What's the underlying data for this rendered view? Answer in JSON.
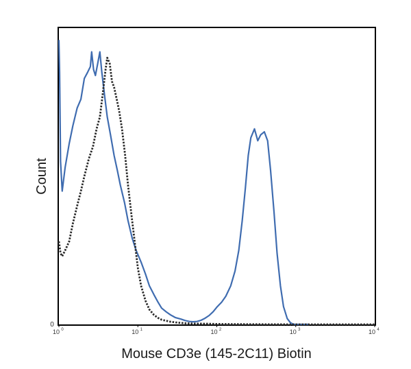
{
  "chart_data": {
    "type": "line",
    "title": "",
    "xlabel": "Mouse CD3e (145-2C11) Biotin",
    "ylabel": "Count",
    "x_scale": "log",
    "xlim": [
      1,
      10000
    ],
    "ylim": [
      0,
      100
    ],
    "x_ticks": [
      {
        "value": 1,
        "base": "10",
        "exp": "0"
      },
      {
        "value": 10,
        "base": "10",
        "exp": "1"
      },
      {
        "value": 100,
        "base": "10",
        "exp": "2"
      },
      {
        "value": 1000,
        "base": "10",
        "exp": "3"
      },
      {
        "value": 10000,
        "base": "10",
        "exp": "4"
      }
    ],
    "y_tick_label": "0",
    "grid": false,
    "legend": "none",
    "series": [
      {
        "id": "stained",
        "color": "#3f6cb0",
        "style": "solid",
        "x": [
          1.0,
          1.02,
          1.05,
          1.1,
          1.2,
          1.35,
          1.5,
          1.7,
          1.9,
          2.1,
          2.3,
          2.5,
          2.6,
          2.75,
          2.9,
          3.1,
          3.3,
          3.5,
          3.8,
          4.1,
          4.5,
          5.0,
          5.5,
          6.0,
          6.8,
          7.5,
          8.5,
          9.5,
          11,
          12.5,
          14,
          16,
          18,
          20,
          23,
          26,
          30,
          35,
          40,
          45,
          50,
          56,
          63,
          70,
          80,
          90,
          100,
          115,
          130,
          150,
          170,
          190,
          210,
          230,
          250,
          270,
          300,
          330,
          360,
          400,
          440,
          480,
          530,
          580,
          640,
          700,
          780,
          860,
          950,
          1100,
          1500
        ],
        "values": [
          96,
          85,
          55,
          45,
          53,
          61,
          67,
          73,
          76,
          83,
          85,
          87,
          92,
          86,
          84,
          88,
          92,
          85,
          77,
          70,
          64,
          57,
          52,
          47,
          41,
          35,
          29,
          25,
          21,
          17,
          13,
          10,
          7.5,
          5.5,
          4.2,
          3.2,
          2.3,
          1.8,
          1.3,
          1.0,
          0.9,
          1.0,
          1.4,
          2.0,
          3.0,
          4.3,
          5.8,
          7.5,
          9.5,
          13,
          18,
          25,
          35,
          46,
          57,
          63,
          66,
          62,
          64,
          65,
          62,
          52,
          38,
          24,
          13,
          6,
          2,
          0.5,
          0,
          0,
          0
        ]
      },
      {
        "id": "control",
        "color": "#2b2b2b",
        "style": "dotted",
        "x": [
          1.0,
          1.05,
          1.1,
          1.2,
          1.35,
          1.5,
          1.7,
          1.9,
          2.1,
          2.4,
          2.7,
          3.0,
          3.3,
          3.6,
          3.9,
          4.1,
          4.4,
          4.7,
          5.0,
          5.4,
          5.8,
          6.3,
          6.9,
          7.5,
          8.3,
          9.2,
          10,
          11,
          12.5,
          14,
          16,
          18,
          20,
          23,
          26,
          30,
          35,
          40,
          48,
          60,
          80,
          100,
          150,
          300,
          1000,
          10000
        ],
        "values": [
          28,
          24,
          23,
          25,
          28,
          34,
          40,
          45,
          50,
          56,
          60,
          66,
          70,
          78,
          86,
          90,
          88,
          82,
          80,
          76,
          72,
          66,
          57,
          47,
          37,
          27,
          19,
          13,
          8,
          5,
          3.2,
          2.2,
          1.6,
          1.2,
          0.9,
          0.7,
          0.5,
          0.4,
          0.3,
          0.25,
          0.2,
          0.15,
          0.1,
          0.05,
          0,
          0
        ]
      }
    ]
  }
}
